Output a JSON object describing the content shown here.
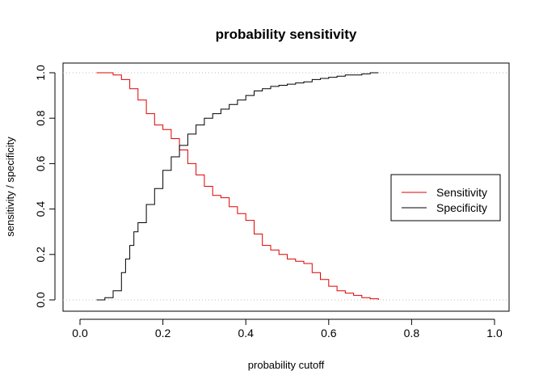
{
  "chart_data": {
    "type": "line",
    "title": "probability sensitivity",
    "xlabel": "probability cutoff",
    "ylabel": "sensitivity / specificity",
    "xlim": [
      0.0,
      1.0
    ],
    "ylim": [
      0.0,
      1.0
    ],
    "x_ticks": [
      "0.0",
      "0.2",
      "0.4",
      "0.6",
      "0.8",
      "1.0"
    ],
    "y_ticks": [
      "0.0",
      "0.2",
      "0.4",
      "0.6",
      "0.8",
      "1.0"
    ],
    "reference_lines": [
      0.0,
      1.0
    ],
    "grid": false,
    "legend_position": "right",
    "series": [
      {
        "name": "Sensitivity",
        "color": "#DF0000",
        "x": [
          0.04,
          0.07,
          0.08,
          0.1,
          0.12,
          0.14,
          0.16,
          0.18,
          0.2,
          0.22,
          0.24,
          0.26,
          0.28,
          0.3,
          0.32,
          0.34,
          0.36,
          0.38,
          0.4,
          0.42,
          0.44,
          0.46,
          0.48,
          0.5,
          0.52,
          0.54,
          0.56,
          0.58,
          0.6,
          0.62,
          0.64,
          0.66,
          0.68,
          0.7,
          0.72
        ],
        "values": [
          1.0,
          1.0,
          0.99,
          0.97,
          0.93,
          0.88,
          0.82,
          0.77,
          0.75,
          0.71,
          0.66,
          0.6,
          0.55,
          0.5,
          0.46,
          0.45,
          0.41,
          0.38,
          0.35,
          0.29,
          0.24,
          0.22,
          0.2,
          0.18,
          0.17,
          0.16,
          0.12,
          0.09,
          0.06,
          0.04,
          0.03,
          0.02,
          0.01,
          0.005,
          0.0
        ]
      },
      {
        "name": "Specificity",
        "color": "#000000",
        "x": [
          0.04,
          0.06,
          0.08,
          0.1,
          0.11,
          0.12,
          0.13,
          0.14,
          0.16,
          0.18,
          0.2,
          0.22,
          0.24,
          0.26,
          0.28,
          0.3,
          0.32,
          0.34,
          0.36,
          0.38,
          0.4,
          0.42,
          0.44,
          0.46,
          0.48,
          0.5,
          0.52,
          0.54,
          0.56,
          0.58,
          0.6,
          0.62,
          0.64,
          0.66,
          0.68,
          0.7,
          0.72
        ],
        "values": [
          0.0,
          0.01,
          0.04,
          0.12,
          0.18,
          0.24,
          0.3,
          0.34,
          0.42,
          0.49,
          0.57,
          0.63,
          0.68,
          0.73,
          0.77,
          0.8,
          0.82,
          0.84,
          0.86,
          0.88,
          0.9,
          0.92,
          0.93,
          0.94,
          0.945,
          0.95,
          0.955,
          0.96,
          0.97,
          0.975,
          0.98,
          0.985,
          0.99,
          0.99,
          0.995,
          1.0,
          1.0
        ]
      }
    ]
  }
}
